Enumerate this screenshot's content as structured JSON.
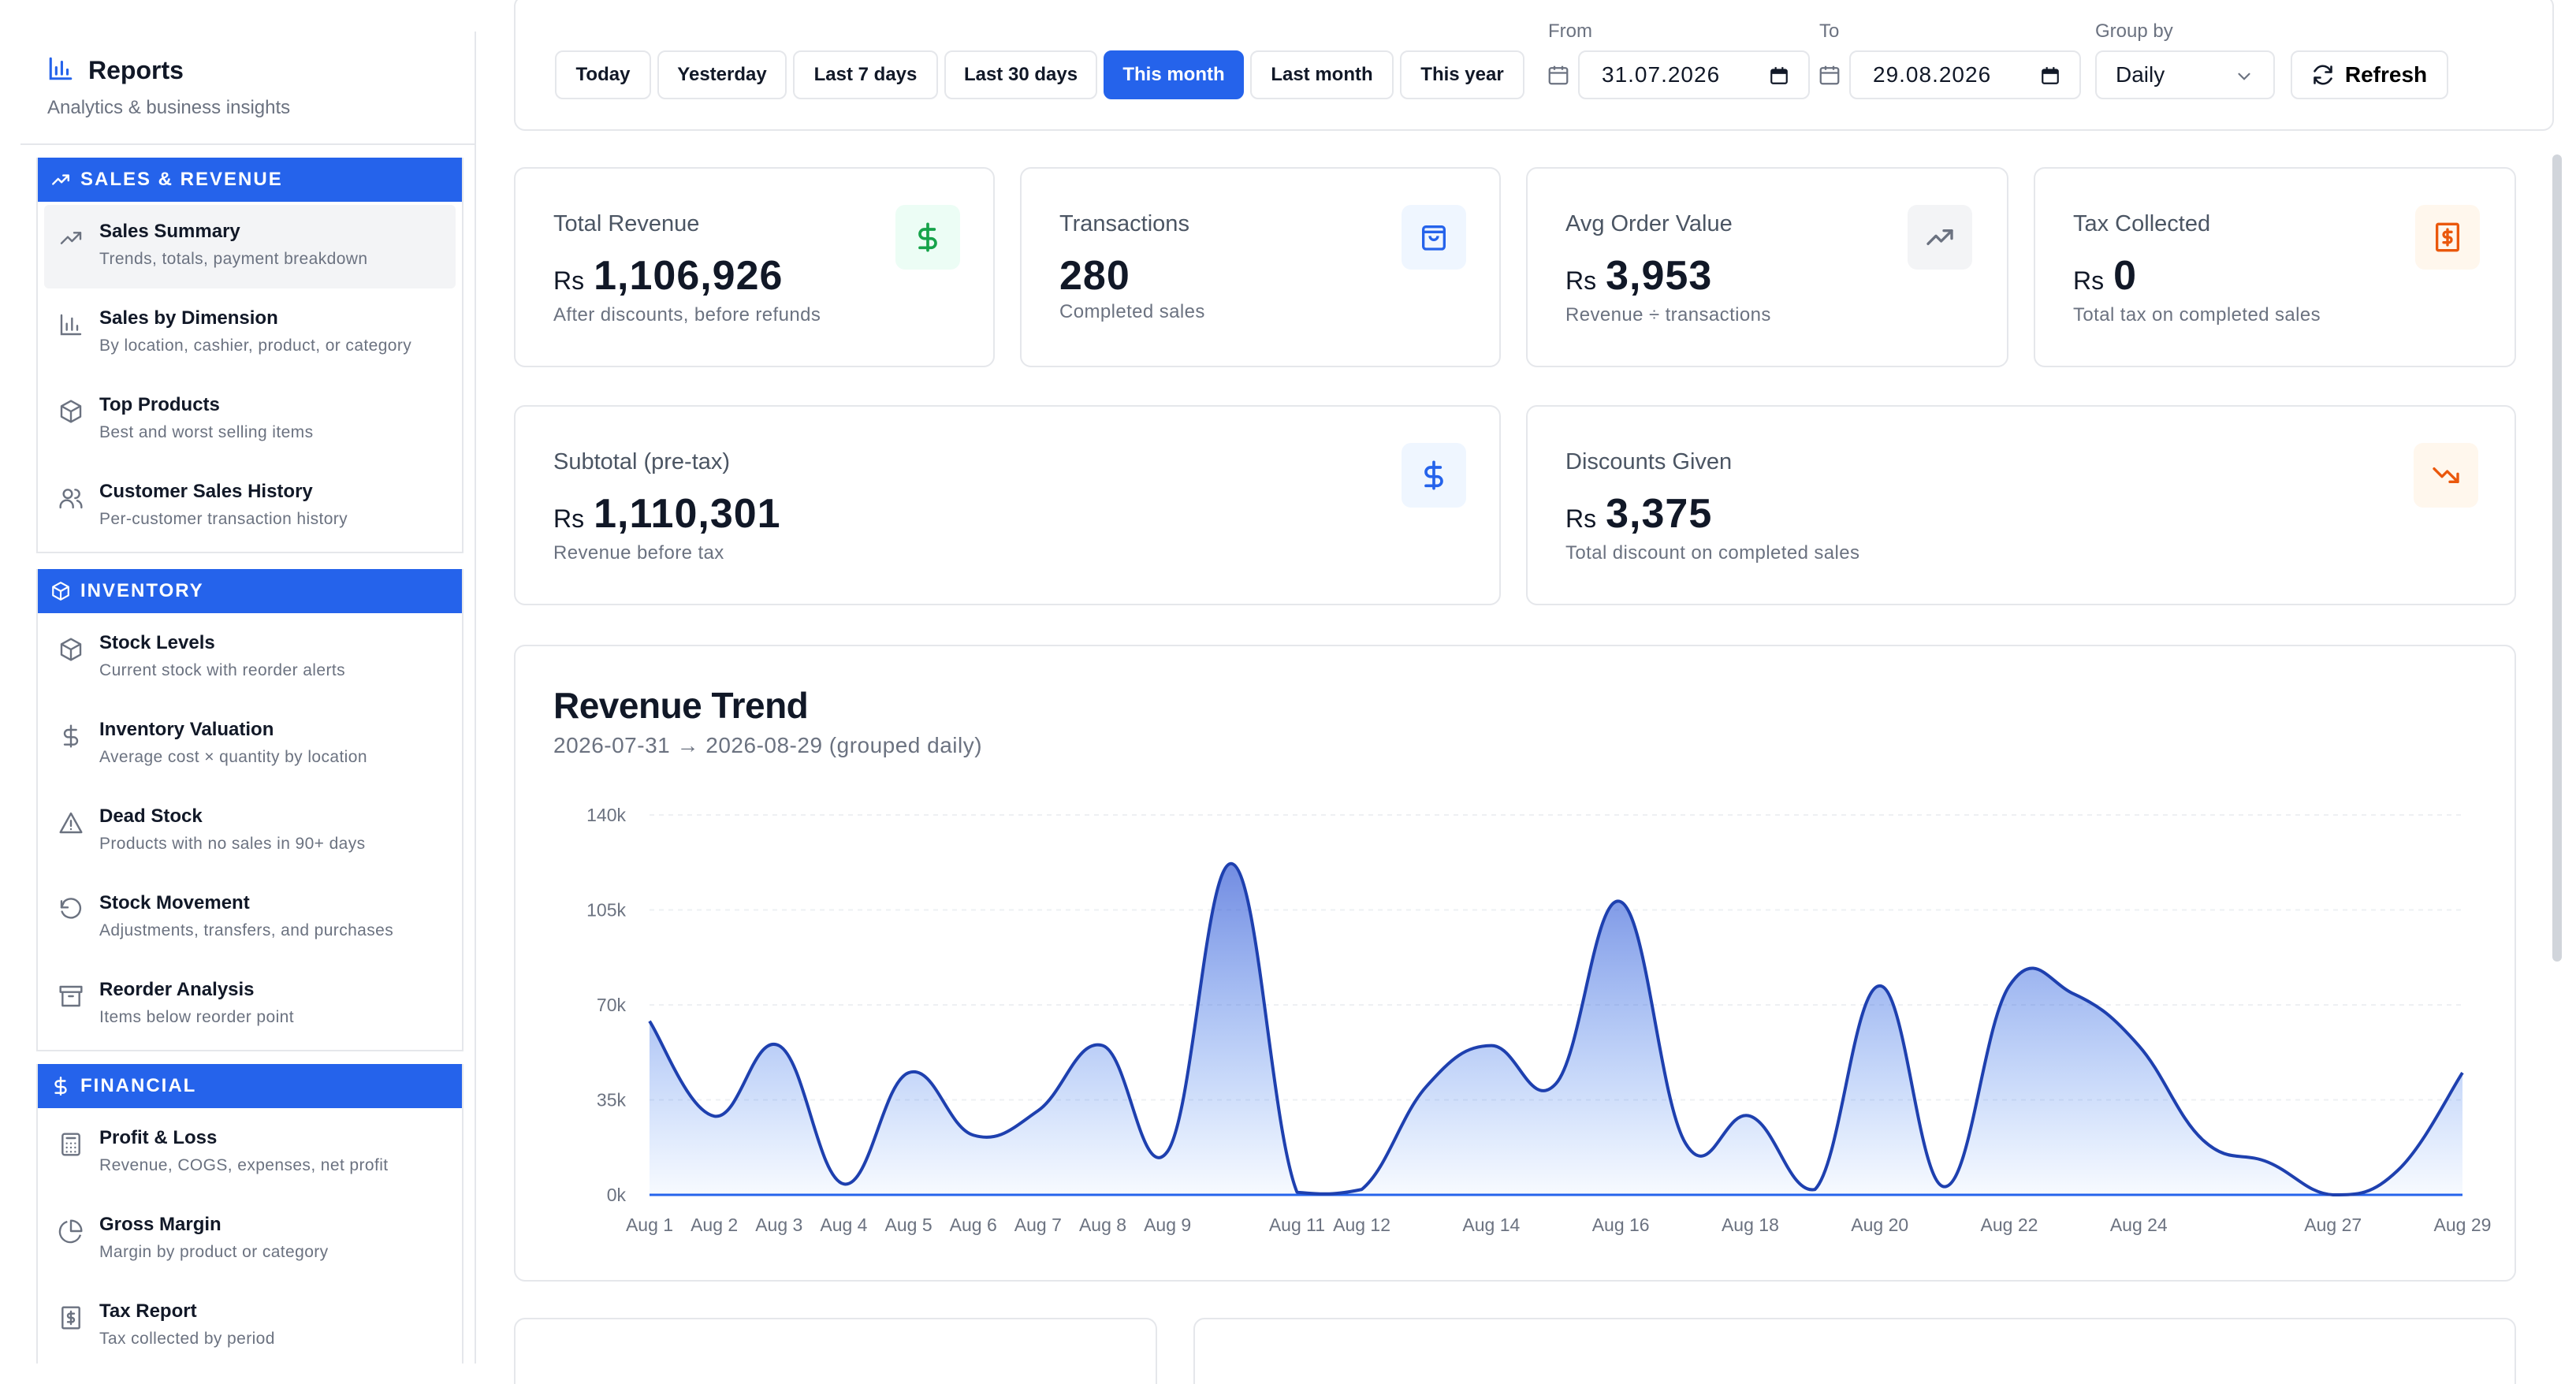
{
  "sidebar": {
    "title": "Reports",
    "subtitle": "Analytics & business insights",
    "sections": [
      {
        "label": "SALES & REVENUE",
        "items": [
          {
            "title": "Sales Summary",
            "desc": "Trends, totals, payment breakdown"
          },
          {
            "title": "Sales by Dimension",
            "desc": "By location, cashier, product, or category"
          },
          {
            "title": "Top Products",
            "desc": "Best and worst selling items"
          },
          {
            "title": "Customer Sales History",
            "desc": "Per-customer transaction history"
          }
        ]
      },
      {
        "label": "INVENTORY",
        "items": [
          {
            "title": "Stock Levels",
            "desc": "Current stock with reorder alerts"
          },
          {
            "title": "Inventory Valuation",
            "desc": "Average cost × quantity by location"
          },
          {
            "title": "Dead Stock",
            "desc": "Products with no sales in 90+ days"
          },
          {
            "title": "Stock Movement",
            "desc": "Adjustments, transfers, and purchases"
          },
          {
            "title": "Reorder Analysis",
            "desc": "Items below reorder point"
          }
        ]
      },
      {
        "label": "FINANCIAL",
        "items": [
          {
            "title": "Profit & Loss",
            "desc": "Revenue, COGS, expenses, net profit"
          },
          {
            "title": "Gross Margin",
            "desc": "Margin by product or category"
          },
          {
            "title": "Tax Report",
            "desc": "Tax collected by period"
          }
        ]
      }
    ]
  },
  "filters": {
    "ranges": [
      "Today",
      "Yesterday",
      "Last 7 days",
      "Last 30 days",
      "This month",
      "Last month",
      "This year"
    ],
    "active_range": "This month",
    "from_label": "From",
    "from_value": "31.07.2026",
    "to_label": "To",
    "to_value": "29.08.2026",
    "group_label": "Group by",
    "group_value": "Daily",
    "refresh_label": "Refresh"
  },
  "stats": [
    {
      "label": "Total Revenue",
      "currency": "Rs",
      "value": "1,106,926",
      "sub": "After discounts, before refunds",
      "icon": "dollar-icon",
      "color": "#16a34a",
      "bg": "#ecfdf5"
    },
    {
      "label": "Transactions",
      "currency": "",
      "value": "280",
      "sub": "Completed sales",
      "icon": "shopping-bag-icon",
      "color": "#2563eb",
      "bg": "#eff6ff"
    },
    {
      "label": "Avg Order Value",
      "currency": "Rs",
      "value": "3,953",
      "sub": "Revenue ÷ transactions",
      "icon": "trending-up-icon",
      "color": "#6b7280",
      "bg": "#f3f4f6"
    },
    {
      "label": "Tax Collected",
      "currency": "Rs",
      "value": "0",
      "sub": "Total tax on completed sales",
      "icon": "receipt-icon",
      "color": "#ea580c",
      "bg": "#fff7ed"
    },
    {
      "label": "Subtotal (pre-tax)",
      "currency": "Rs",
      "value": "1,110,301",
      "sub": "Revenue before tax",
      "icon": "dollar-icon",
      "color": "#2563eb",
      "bg": "#eff6ff"
    },
    {
      "label": "Discounts Given",
      "currency": "Rs",
      "value": "3,375",
      "sub": "Total discount on completed sales",
      "icon": "trending-down-icon",
      "color": "#ea580c",
      "bg": "#fff7ed"
    }
  ],
  "chart": {
    "title": "Revenue Trend",
    "subtitle": "2026-07-31 → 2026-08-29 (grouped daily)"
  },
  "chart_data": {
    "type": "area",
    "x": [
      "Aug 1",
      "Aug 2",
      "Aug 3",
      "Aug 4",
      "Aug 5",
      "Aug 6",
      "Aug 7",
      "Aug 8",
      "Aug 9",
      "Aug 10",
      "Aug 11",
      "Aug 12",
      "Aug 13",
      "Aug 14",
      "Aug 15",
      "Aug 16",
      "Aug 17",
      "Aug 18",
      "Aug 19",
      "Aug 20",
      "Aug 21",
      "Aug 22",
      "Aug 23",
      "Aug 24",
      "Aug 25",
      "Aug 26",
      "Aug 27",
      "Aug 28",
      "Aug 29"
    ],
    "tick_labels": [
      "Aug 1",
      "Aug 2",
      "Aug 3",
      "Aug 4",
      "Aug 5",
      "Aug 6",
      "Aug 7",
      "Aug 8",
      "Aug 9",
      "Aug 11",
      "Aug 12",
      "Aug 14",
      "Aug 16",
      "Aug 18",
      "Aug 20",
      "Aug 22",
      "Aug 24",
      "Aug 27",
      "Aug 29"
    ],
    "values": [
      64000,
      29000,
      55000,
      4000,
      45000,
      22000,
      31000,
      55000,
      16000,
      122000,
      1000,
      2000,
      40000,
      55000,
      41000,
      108000,
      19000,
      29000,
      2000,
      77000,
      3000,
      77000,
      74000,
      55000,
      20000,
      12000,
      0,
      9000,
      45000
    ],
    "y_ticks": [
      "0k",
      "35k",
      "70k",
      "105k",
      "140k"
    ],
    "ylim": [
      0,
      140000
    ],
    "color": "#1e40af",
    "grid": true
  }
}
